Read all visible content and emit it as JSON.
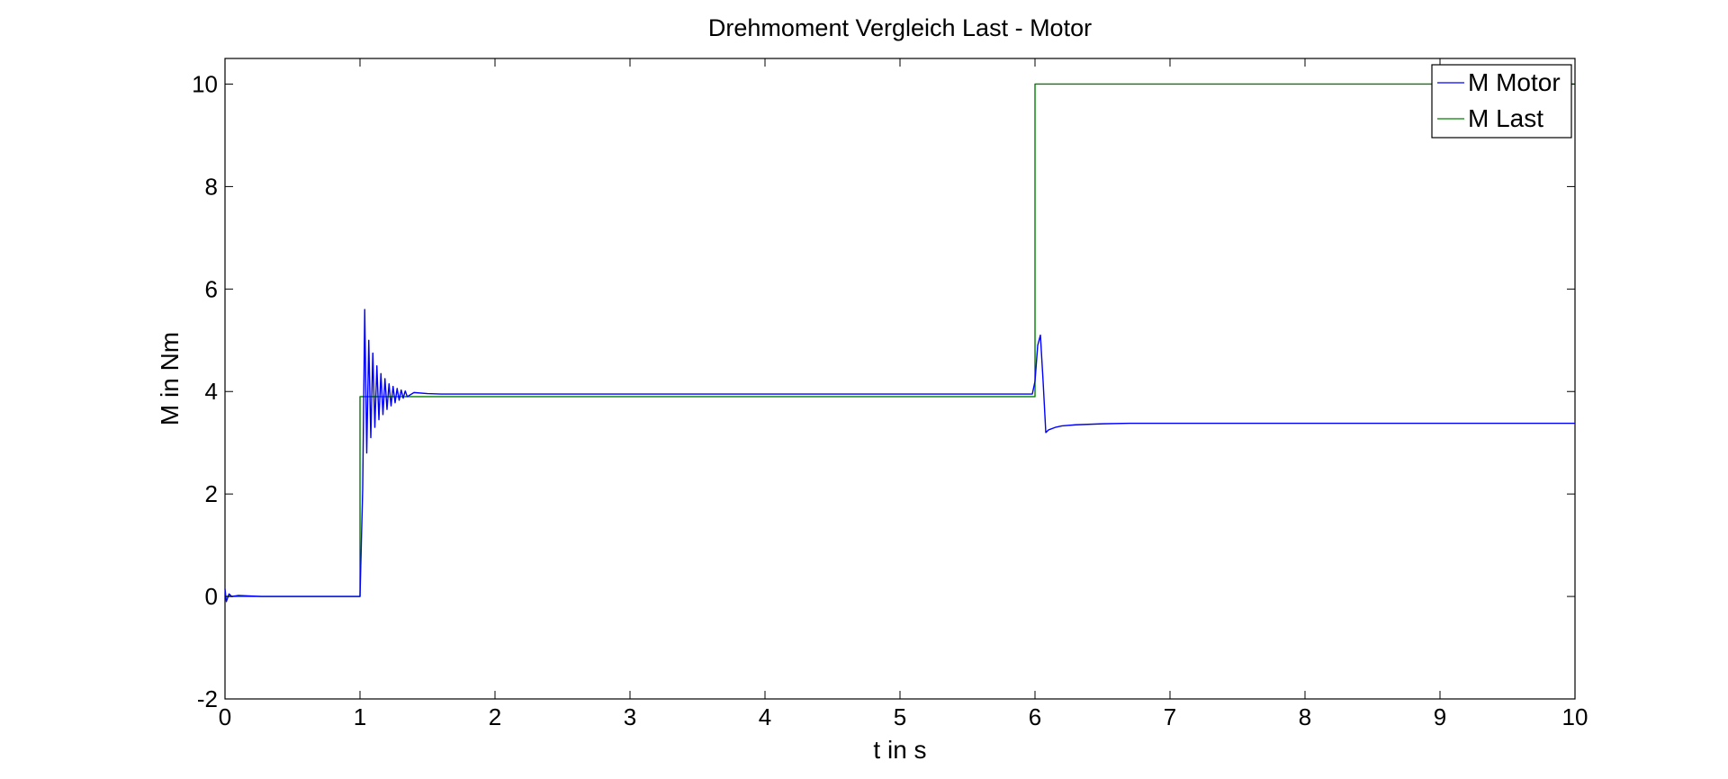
{
  "chart_data": {
    "type": "line",
    "title": "Drehmoment Vergleich Last - Motor",
    "xlabel": "t in s",
    "ylabel": "M in Nm",
    "xlim": [
      0,
      10
    ],
    "ylim": [
      -2,
      10.5
    ],
    "xticks": [
      0,
      1,
      2,
      3,
      4,
      5,
      6,
      7,
      8,
      9,
      10
    ],
    "yticks": [
      -2,
      0,
      2,
      4,
      6,
      8,
      10
    ],
    "grid": false,
    "legend_position": "top-right",
    "series": [
      {
        "name": "M Motor",
        "color": "#0000ff",
        "x": [
          0,
          0.01,
          0.03,
          0.05,
          0.1,
          0.27,
          1.0,
          1.02,
          1.035,
          1.05,
          1.065,
          1.08,
          1.095,
          1.11,
          1.125,
          1.14,
          1.155,
          1.17,
          1.185,
          1.2,
          1.215,
          1.23,
          1.245,
          1.26,
          1.275,
          1.29,
          1.305,
          1.32,
          1.335,
          1.35,
          1.4,
          1.5,
          1.6,
          2,
          3,
          4,
          5,
          5.98,
          6.0,
          6.02,
          6.04,
          6.06,
          6.08,
          6.1,
          6.15,
          6.2,
          6.3,
          6.5,
          6.7,
          7,
          8,
          9,
          10
        ],
        "y": [
          0.15,
          -0.1,
          0.05,
          0,
          0.02,
          0,
          0,
          2.1,
          5.6,
          2.8,
          5.0,
          3.1,
          4.75,
          3.3,
          4.5,
          3.45,
          4.35,
          3.55,
          4.25,
          3.65,
          4.15,
          3.72,
          4.1,
          3.78,
          4.06,
          3.83,
          4.03,
          3.87,
          4.01,
          3.9,
          3.98,
          3.96,
          3.95,
          3.95,
          3.95,
          3.95,
          3.95,
          3.95,
          4.2,
          4.9,
          5.1,
          4.2,
          3.2,
          3.25,
          3.3,
          3.33,
          3.35,
          3.37,
          3.38,
          3.38,
          3.38,
          3.38,
          3.38
        ]
      },
      {
        "name": "M Last",
        "color": "#008000",
        "x": [
          0,
          1.0,
          1.0,
          6.0,
          6.0,
          10
        ],
        "y": [
          0,
          0,
          3.9,
          3.9,
          10,
          10
        ]
      }
    ]
  }
}
